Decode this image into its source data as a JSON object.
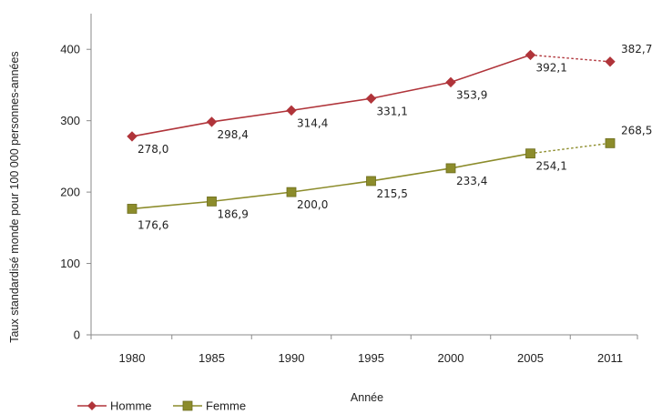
{
  "chart_data": {
    "type": "line",
    "title": "",
    "xlabel": "Année",
    "ylabel": "Taux standardisé monde pour 100 000 personnes-années",
    "categories": [
      "1980",
      "1985",
      "1990",
      "1995",
      "2000",
      "2005",
      "2011"
    ],
    "ylim": [
      0,
      450
    ],
    "yticks": [
      "0",
      "100",
      "200",
      "300",
      "400"
    ],
    "grid": false,
    "legend_position": "bottom-left",
    "series": [
      {
        "name": "Homme",
        "color": "#b0343a",
        "marker": "diamond",
        "values": [
          278.0,
          298.4,
          314.4,
          331.1,
          353.9,
          392.1,
          382.7
        ],
        "labels": [
          "278,0",
          "298,4",
          "314,4",
          "331,1",
          "353,9",
          "392,1",
          "382,7"
        ],
        "dashed_last_segment": true
      },
      {
        "name": "Femme",
        "color": "#8c8c2b",
        "marker": "square",
        "values": [
          176.6,
          186.9,
          200.0,
          215.5,
          233.4,
          254.1,
          268.5
        ],
        "labels": [
          "176,6",
          "186,9",
          "200,0",
          "215,5",
          "233,4",
          "254,1",
          "268,5"
        ],
        "dashed_last_segment": true
      }
    ]
  }
}
